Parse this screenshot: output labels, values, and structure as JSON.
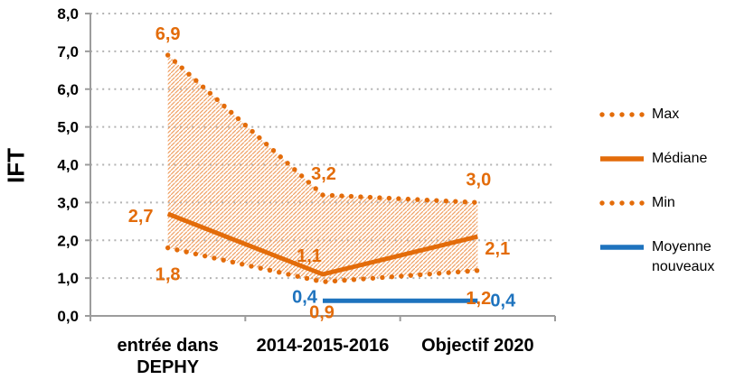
{
  "chart_data": {
    "type": "line",
    "title": "",
    "ylabel": "IFT",
    "xlabel": "",
    "grid": true,
    "legend_position": "right",
    "categories": [
      "entrée dans DEPHY",
      "2014-2015-2016",
      "Objectif 2020"
    ],
    "categories_lines": [
      [
        "entrée dans",
        "DEPHY"
      ],
      [
        "2014-2015-2016"
      ],
      [
        "Objectif 2020"
      ]
    ],
    "y_axis": {
      "min": 0,
      "max": 8,
      "step": 1,
      "tick_labels": [
        "0,0",
        "1,0",
        "2,0",
        "3,0",
        "4,0",
        "5,0",
        "6,0",
        "7,0",
        "8,0"
      ]
    },
    "series": [
      {
        "name": "Max",
        "color": "#E36C0A",
        "style": "dotted",
        "values": [
          6.9,
          3.2,
          3.0
        ],
        "labels": [
          "6,9",
          "3,2",
          "3,0"
        ]
      },
      {
        "name": "Médiane",
        "color": "#E36C0A",
        "style": "solid",
        "values": [
          2.7,
          1.1,
          2.1
        ],
        "labels": [
          "2,7",
          "1,1",
          "2,1"
        ]
      },
      {
        "name": "Min",
        "color": "#E36C0A",
        "style": "dotted",
        "values": [
          1.8,
          0.9,
          1.2
        ],
        "labels": [
          "1,8",
          "0,9",
          "1,2"
        ]
      },
      {
        "name": "Moyenne nouveaux",
        "color": "#1E73BE",
        "style": "solid",
        "values": [
          null,
          0.4,
          0.4
        ],
        "labels": [
          null,
          "0,4",
          "0,4"
        ]
      }
    ],
    "band": {
      "between": [
        "Min",
        "Max"
      ],
      "fill": "diagonal-hatch",
      "hatch_color": "#EFA064"
    },
    "label_offsets": [
      [
        [
          0,
          -24
        ],
        [
          1,
          -24
        ],
        [
          1,
          -26
        ]
      ],
      [
        [
          -30,
          2
        ],
        [
          -15,
          -21
        ],
        [
          22,
          13
        ]
      ],
      [
        [
          0,
          29
        ],
        [
          -1,
          33
        ],
        [
          1,
          30
        ]
      ],
      [
        [
          0,
          0
        ],
        [
          -20,
          -5
        ],
        [
          28,
          -1
        ]
      ]
    ],
    "colors": {
      "axis": "#9C9C9C",
      "gridline": "#B3B3B3",
      "text": "#000000",
      "orange": "#E36C0A",
      "blue": "#1E73BE"
    }
  }
}
